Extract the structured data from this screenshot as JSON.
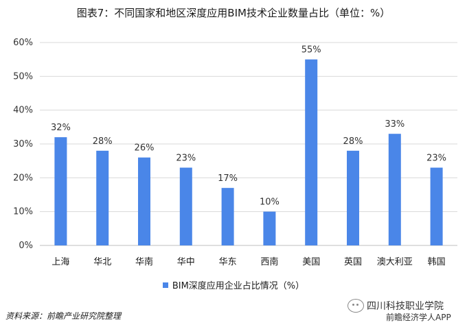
{
  "title": "图表7：不同国家和地区深度应用BIM技术企业数量占比（单位：%）",
  "source": "资料来源：前瞻产业研究院整理",
  "legend_label": "BIM深度应用企业占比情况（%）",
  "watermark": {
    "line1": "四川科技职业学院",
    "line2": "前瞻经济学人APP"
  },
  "colors": {
    "bar": "#4a86e8",
    "grid": "#d9d9d9"
  },
  "chart_data": {
    "type": "bar",
    "title": "图表7：不同国家和地区深度应用BIM技术企业数量占比（单位：%）",
    "categories": [
      "上海",
      "华北",
      "华南",
      "华中",
      "华东",
      "西南",
      "美国",
      "英国",
      "澳大利亚",
      "韩国"
    ],
    "series": [
      {
        "name": "BIM深度应用企业占比情况（%）",
        "values": [
          32,
          28,
          26,
          23,
          17,
          10,
          55,
          28,
          33,
          23
        ]
      }
    ],
    "value_labels": [
      "32%",
      "28%",
      "26%",
      "23%",
      "17%",
      "10%",
      "55%",
      "28%",
      "33%",
      "23%"
    ],
    "ylim": [
      0,
      60
    ],
    "yticks": [
      "0%",
      "10%",
      "20%",
      "30%",
      "40%",
      "50%",
      "60%"
    ],
    "grid": true,
    "legend_position": "bottom"
  }
}
